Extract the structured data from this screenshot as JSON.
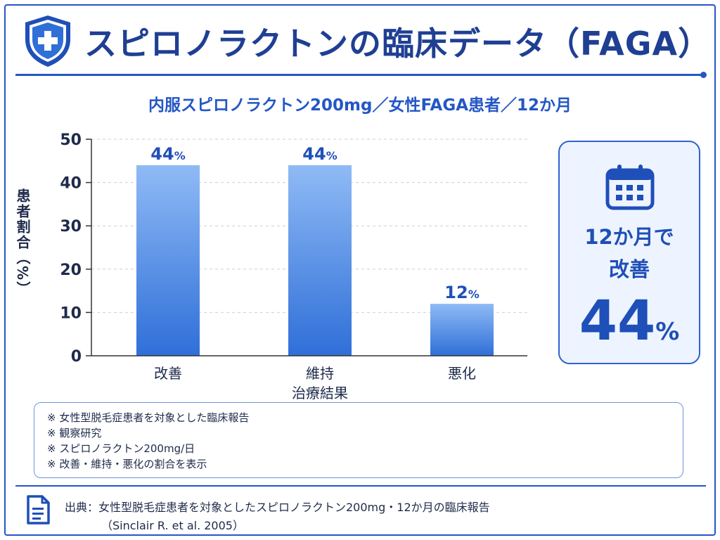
{
  "title": "スピロノラクトンの臨床データ（FAGA）",
  "subtitle": "内服スピロノラクトン200mg／女性FAGA患者／12か月",
  "chart_data": {
    "type": "bar",
    "categories": [
      "改善",
      "維持",
      "悪化"
    ],
    "values": [
      44,
      44,
      12
    ],
    "value_labels": [
      "44",
      "44",
      "12"
    ],
    "value_unit": "%",
    "xlabel": "治療結果",
    "ylabel": "患者割合（%）",
    "ylim": [
      0,
      50
    ],
    "yticks": [
      0,
      10,
      20,
      30,
      40,
      50
    ],
    "grid": true,
    "bar_color_top": "#8fbaf5",
    "bar_color_bottom": "#2f6fd8"
  },
  "highlight": {
    "line1": "12か月で",
    "line2": "改善",
    "value": "44",
    "unit": "%",
    "icon": "calendar-icon"
  },
  "notes": [
    "※ 女性型脱毛症患者を対象とした臨床報告",
    "※ 観察研究",
    "※ スピロノラクトン200mg/日",
    "※ 改善・維持・悪化の割合を表示"
  ],
  "source": {
    "line1": "出典：女性型脱毛症患者を対象としたスピロノラクトン200mg・12か月の臨床報告",
    "line2": "（Sinclair R. et al. 2005）",
    "icon": "document-icon"
  },
  "colors": {
    "accent": "#2457c5",
    "title": "#1f3f93",
    "card_bg": "#eef4ff"
  }
}
